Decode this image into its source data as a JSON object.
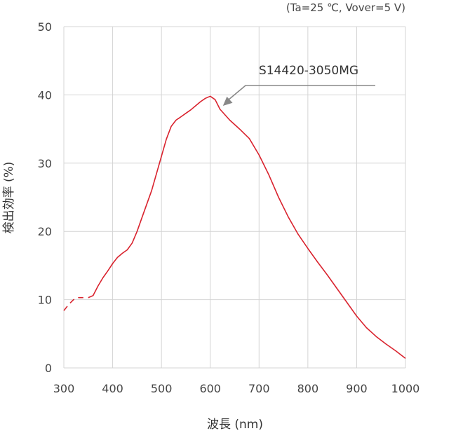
{
  "conditions": "(Ta=25 ℃, Vover=5 V)",
  "chart_data": {
    "type": "line",
    "title": "",
    "xlabel": "波長 (nm)",
    "ylabel": "検出効率 (%)",
    "xlim": [
      300,
      1000
    ],
    "ylim": [
      0,
      50
    ],
    "xticks": [
      300,
      400,
      500,
      600,
      700,
      800,
      900,
      1000
    ],
    "yticks": [
      0,
      10,
      20,
      30,
      40,
      50
    ],
    "grid": true,
    "series": [
      {
        "name": "S14420-3050MG",
        "color": "#d9232e",
        "dashed_until": 345,
        "points": [
          [
            300,
            8.4
          ],
          [
            310,
            9.3
          ],
          [
            320,
            10.0
          ],
          [
            330,
            10.3
          ],
          [
            340,
            10.3
          ],
          [
            350,
            10.3
          ],
          [
            360,
            10.6
          ],
          [
            370,
            12.0
          ],
          [
            380,
            13.2
          ],
          [
            390,
            14.2
          ],
          [
            400,
            15.3
          ],
          [
            410,
            16.2
          ],
          [
            420,
            16.8
          ],
          [
            430,
            17.3
          ],
          [
            440,
            18.3
          ],
          [
            450,
            20.0
          ],
          [
            460,
            22.0
          ],
          [
            480,
            26.0
          ],
          [
            500,
            31.0
          ],
          [
            510,
            33.5
          ],
          [
            520,
            35.4
          ],
          [
            530,
            36.3
          ],
          [
            540,
            36.8
          ],
          [
            550,
            37.3
          ],
          [
            560,
            37.8
          ],
          [
            570,
            38.4
          ],
          [
            580,
            39.0
          ],
          [
            590,
            39.5
          ],
          [
            600,
            39.8
          ],
          [
            610,
            39.3
          ],
          [
            620,
            37.9
          ],
          [
            640,
            36.3
          ],
          [
            660,
            35.0
          ],
          [
            680,
            33.6
          ],
          [
            700,
            31.2
          ],
          [
            720,
            28.3
          ],
          [
            740,
            25.0
          ],
          [
            760,
            22.1
          ],
          [
            780,
            19.6
          ],
          [
            800,
            17.5
          ],
          [
            820,
            15.5
          ],
          [
            840,
            13.6
          ],
          [
            860,
            11.6
          ],
          [
            880,
            9.6
          ],
          [
            900,
            7.6
          ],
          [
            920,
            5.9
          ],
          [
            940,
            4.6
          ],
          [
            960,
            3.5
          ],
          [
            980,
            2.5
          ],
          [
            1000,
            1.4
          ]
        ]
      }
    ],
    "annotations": [
      {
        "text": "S14420-3050MG",
        "arrow_to": [
          626,
          38.4
        ]
      }
    ]
  }
}
